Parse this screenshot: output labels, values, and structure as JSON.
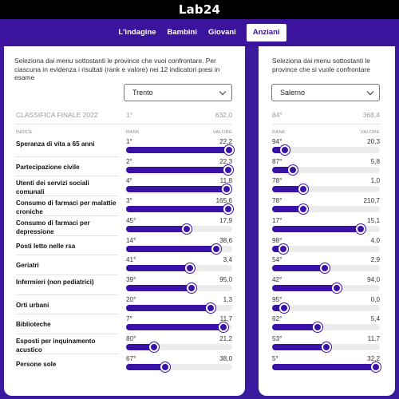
{
  "brand": "Lab24",
  "nav": [
    "L'indagine",
    "Bambini",
    "Giovani",
    "Anziani"
  ],
  "left": {
    "intro": "Seleziona dai menu sottostanti le province che vuoi confrontare. Per ciascuna in evidenza i risultati (rank e valore) nei 12 indicatori presi in esame",
    "province": "Trento",
    "final_label": "CLASSIFICA FINALE 2022",
    "final_rank": "1°",
    "final_value": "632,0",
    "hdr_indice": "INDICE",
    "hdr_rank": "RANK",
    "hdr_valore": "VALORE"
  },
  "right": {
    "intro": "Seleziona dai menu sottostanti le province che si vuole confrontare",
    "province": "Salerno",
    "final_rank": "84°",
    "final_value": "368,4",
    "hdr_rank": "RANK",
    "hdr_valore": "VALORE"
  },
  "indicators": [
    {
      "label": "Speranza di vita a 65 anni",
      "l_rank": "1°",
      "l_val": "22,2",
      "l_pos": 0.97,
      "r_rank": "94°",
      "r_val": "20,3",
      "r_pos": 0.12
    },
    {
      "label": "Partecipazione civile",
      "l_rank": "2°",
      "l_val": "22,3",
      "l_pos": 0.96,
      "r_rank": "87°",
      "r_val": "5,8",
      "r_pos": 0.19
    },
    {
      "label": "Utenti dei servizi sociali comunali",
      "l_rank": "4°",
      "l_val": "11,8",
      "l_pos": 0.95,
      "r_rank": "78°",
      "r_val": "1,0",
      "r_pos": 0.29
    },
    {
      "label": "Consumo di farmaci per malattie croniche",
      "l_rank": "3°",
      "l_val": "165,6",
      "l_pos": 0.96,
      "r_rank": "78°",
      "r_val": "210,7",
      "r_pos": 0.29
    },
    {
      "label": "Consumo di farmaci per depressione",
      "l_rank": "45°",
      "l_val": "17,9",
      "l_pos": 0.57,
      "r_rank": "17°",
      "r_val": "15,1",
      "r_pos": 0.82
    },
    {
      "label": "Posti letto nelle rsa",
      "l_rank": "14°",
      "l_val": "38,6",
      "l_pos": 0.85,
      "r_rank": "98°",
      "r_val": "4,0",
      "r_pos": 0.1
    },
    {
      "label": "Geriatri",
      "l_rank": "41°",
      "l_val": "3,4",
      "l_pos": 0.6,
      "r_rank": "54°",
      "r_val": "2,9",
      "r_pos": 0.49
    },
    {
      "label": "Infermieri (non pediatrici)",
      "l_rank": "39°",
      "l_val": "95,0",
      "l_pos": 0.62,
      "r_rank": "42°",
      "r_val": "94,0",
      "r_pos": 0.6
    },
    {
      "label": "Orti urbani",
      "l_rank": "20°",
      "l_val": "1,3",
      "l_pos": 0.8,
      "r_rank": "95°",
      "r_val": "0,0",
      "r_pos": 0.11
    },
    {
      "label": "Biblioteche",
      "l_rank": "7°",
      "l_val": "11,7",
      "l_pos": 0.92,
      "r_rank": "62°",
      "r_val": "5,4",
      "r_pos": 0.42
    },
    {
      "label": "Esposti per inquinamento acustico",
      "l_rank": "80°",
      "l_val": "21,2",
      "l_pos": 0.26,
      "r_rank": "53°",
      "r_val": "11,7",
      "r_pos": 0.5
    },
    {
      "label": "Persone sole",
      "l_rank": "67°",
      "l_val": "38,0",
      "l_pos": 0.37,
      "r_rank": "5°",
      "r_val": "32,2",
      "r_pos": 0.96
    }
  ]
}
